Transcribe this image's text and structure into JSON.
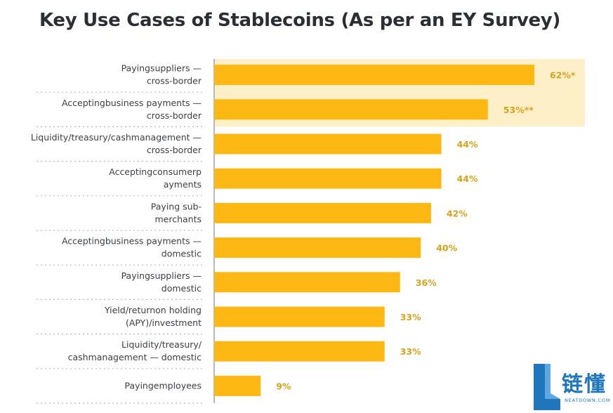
{
  "chart_data": {
    "type": "bar",
    "orientation": "horizontal",
    "title": "Key Use Cases of Stablecoins (As per an EY Survey)",
    "categories": [
      [
        "Payingsuppliers —",
        "cross-border"
      ],
      [
        "Acceptingbusiness payments —",
        "cross-border"
      ],
      [
        "Liquidity/treasury/cashmanagement —",
        "cross-border"
      ],
      [
        "Acceptingconsumerp",
        "ayments"
      ],
      [
        "Paying sub-",
        "merchants"
      ],
      [
        "Acceptingbusiness payments —",
        "domestic"
      ],
      [
        "Payingsuppliers —",
        "domestic"
      ],
      [
        "Yield/returnon holding",
        "(APY)/investment"
      ],
      [
        "Liquidity/treasury/",
        "cashmanagement — domestic"
      ],
      [
        "Payingemployees"
      ]
    ],
    "values": [
      62,
      53,
      44,
      44,
      42,
      40,
      36,
      33,
      33,
      9
    ],
    "value_labels": [
      "62%*",
      "53%**",
      "44%",
      "44%",
      "42%",
      "40%",
      "36%",
      "33%",
      "33%",
      "9%"
    ],
    "highlighted_categories": [
      0,
      1
    ],
    "xlim": [
      0,
      68
    ],
    "grid": false,
    "colors": {
      "bar": "#fdb813",
      "highlight_band": "#fdf0c8",
      "value_label": "#d9a21b",
      "category_label": "#3a3f44",
      "separator": "#b8bcc0",
      "axis": "#8e9396"
    }
  },
  "watermark": {
    "text": "链懂",
    "subtext": "NEATDOWN.COM",
    "color": "#1f76bd"
  }
}
